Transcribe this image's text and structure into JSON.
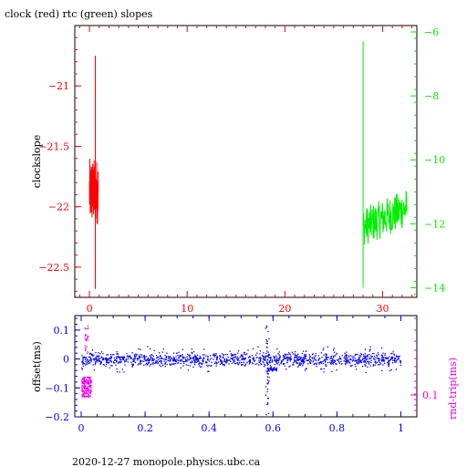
{
  "title": "clock (red) rtc (green) slopes",
  "footer": "2020-12-27  monopole.physics.ubc.ca",
  "colors": {
    "clock": "#ff0000",
    "rtc": "#00ee00",
    "offset": "#0000ff",
    "rtt": "#ee00ee",
    "axis": "#000000"
  },
  "chart_data": [
    {
      "type": "line",
      "panel": "top",
      "title": "clock (red) rtc (green) slopes",
      "xlabel": "",
      "ylabel": "clockslope",
      "xlim": [
        -1.5,
        33.5
      ],
      "xticks": [
        0,
        10,
        20,
        30
      ],
      "ylim": [
        -22.75,
        -20.5
      ],
      "yticks": [
        -21,
        -21.5,
        -22,
        -22.5
      ],
      "ylim_right": [
        -14.3,
        -5.8
      ],
      "yticks_right": [
        -6,
        -8,
        -10,
        -12,
        -14
      ],
      "grid": false,
      "legend": "none (series identified in title)",
      "series": [
        {
          "name": "clock (red)",
          "axis": "left",
          "x_range": [
            0.0,
            0.9
          ],
          "y_center": -21.9,
          "y_band": [
            -22.15,
            -21.6
          ],
          "y_extremes": [
            -22.68,
            -20.75
          ]
        },
        {
          "name": "rtc (green)",
          "axis": "right",
          "x_range": [
            28.0,
            32.5
          ],
          "y_center": -11.9,
          "y_band": [
            -12.7,
            -11.2
          ],
          "y_extremes": [
            -14.0,
            -6.3
          ]
        }
      ]
    },
    {
      "type": "scatter",
      "panel": "bottom",
      "xlabel": "",
      "ylabel": "offset(ms)",
      "ylabel_right": "rnd-trip(ms)",
      "xlim": [
        -0.02,
        1.05
      ],
      "xticks": [
        0,
        0.2,
        0.4,
        0.6,
        0.8,
        1
      ],
      "ylim": [
        -0.2,
        0.15
      ],
      "yticks": [
        0.1,
        0,
        -0.1,
        -0.2
      ],
      "yticks_right": [
        0.1
      ],
      "grid": false,
      "series": [
        {
          "name": "offset",
          "axis": "left",
          "x_range": [
            0.0,
            1.0
          ],
          "y_center": 0.0,
          "y_band": [
            -0.02,
            0.02
          ],
          "features": [
            {
              "x": 0.58,
              "y_range": [
                -0.2,
                0.13
              ]
            },
            {
              "x": 0.59,
              "y_center": -0.035
            }
          ]
        },
        {
          "name": "rnd-trip",
          "axis": "right",
          "x_range": [
            0.0,
            0.03
          ],
          "y_center": -0.1,
          "y_band": [
            -0.13,
            -0.06
          ]
        }
      ]
    }
  ]
}
